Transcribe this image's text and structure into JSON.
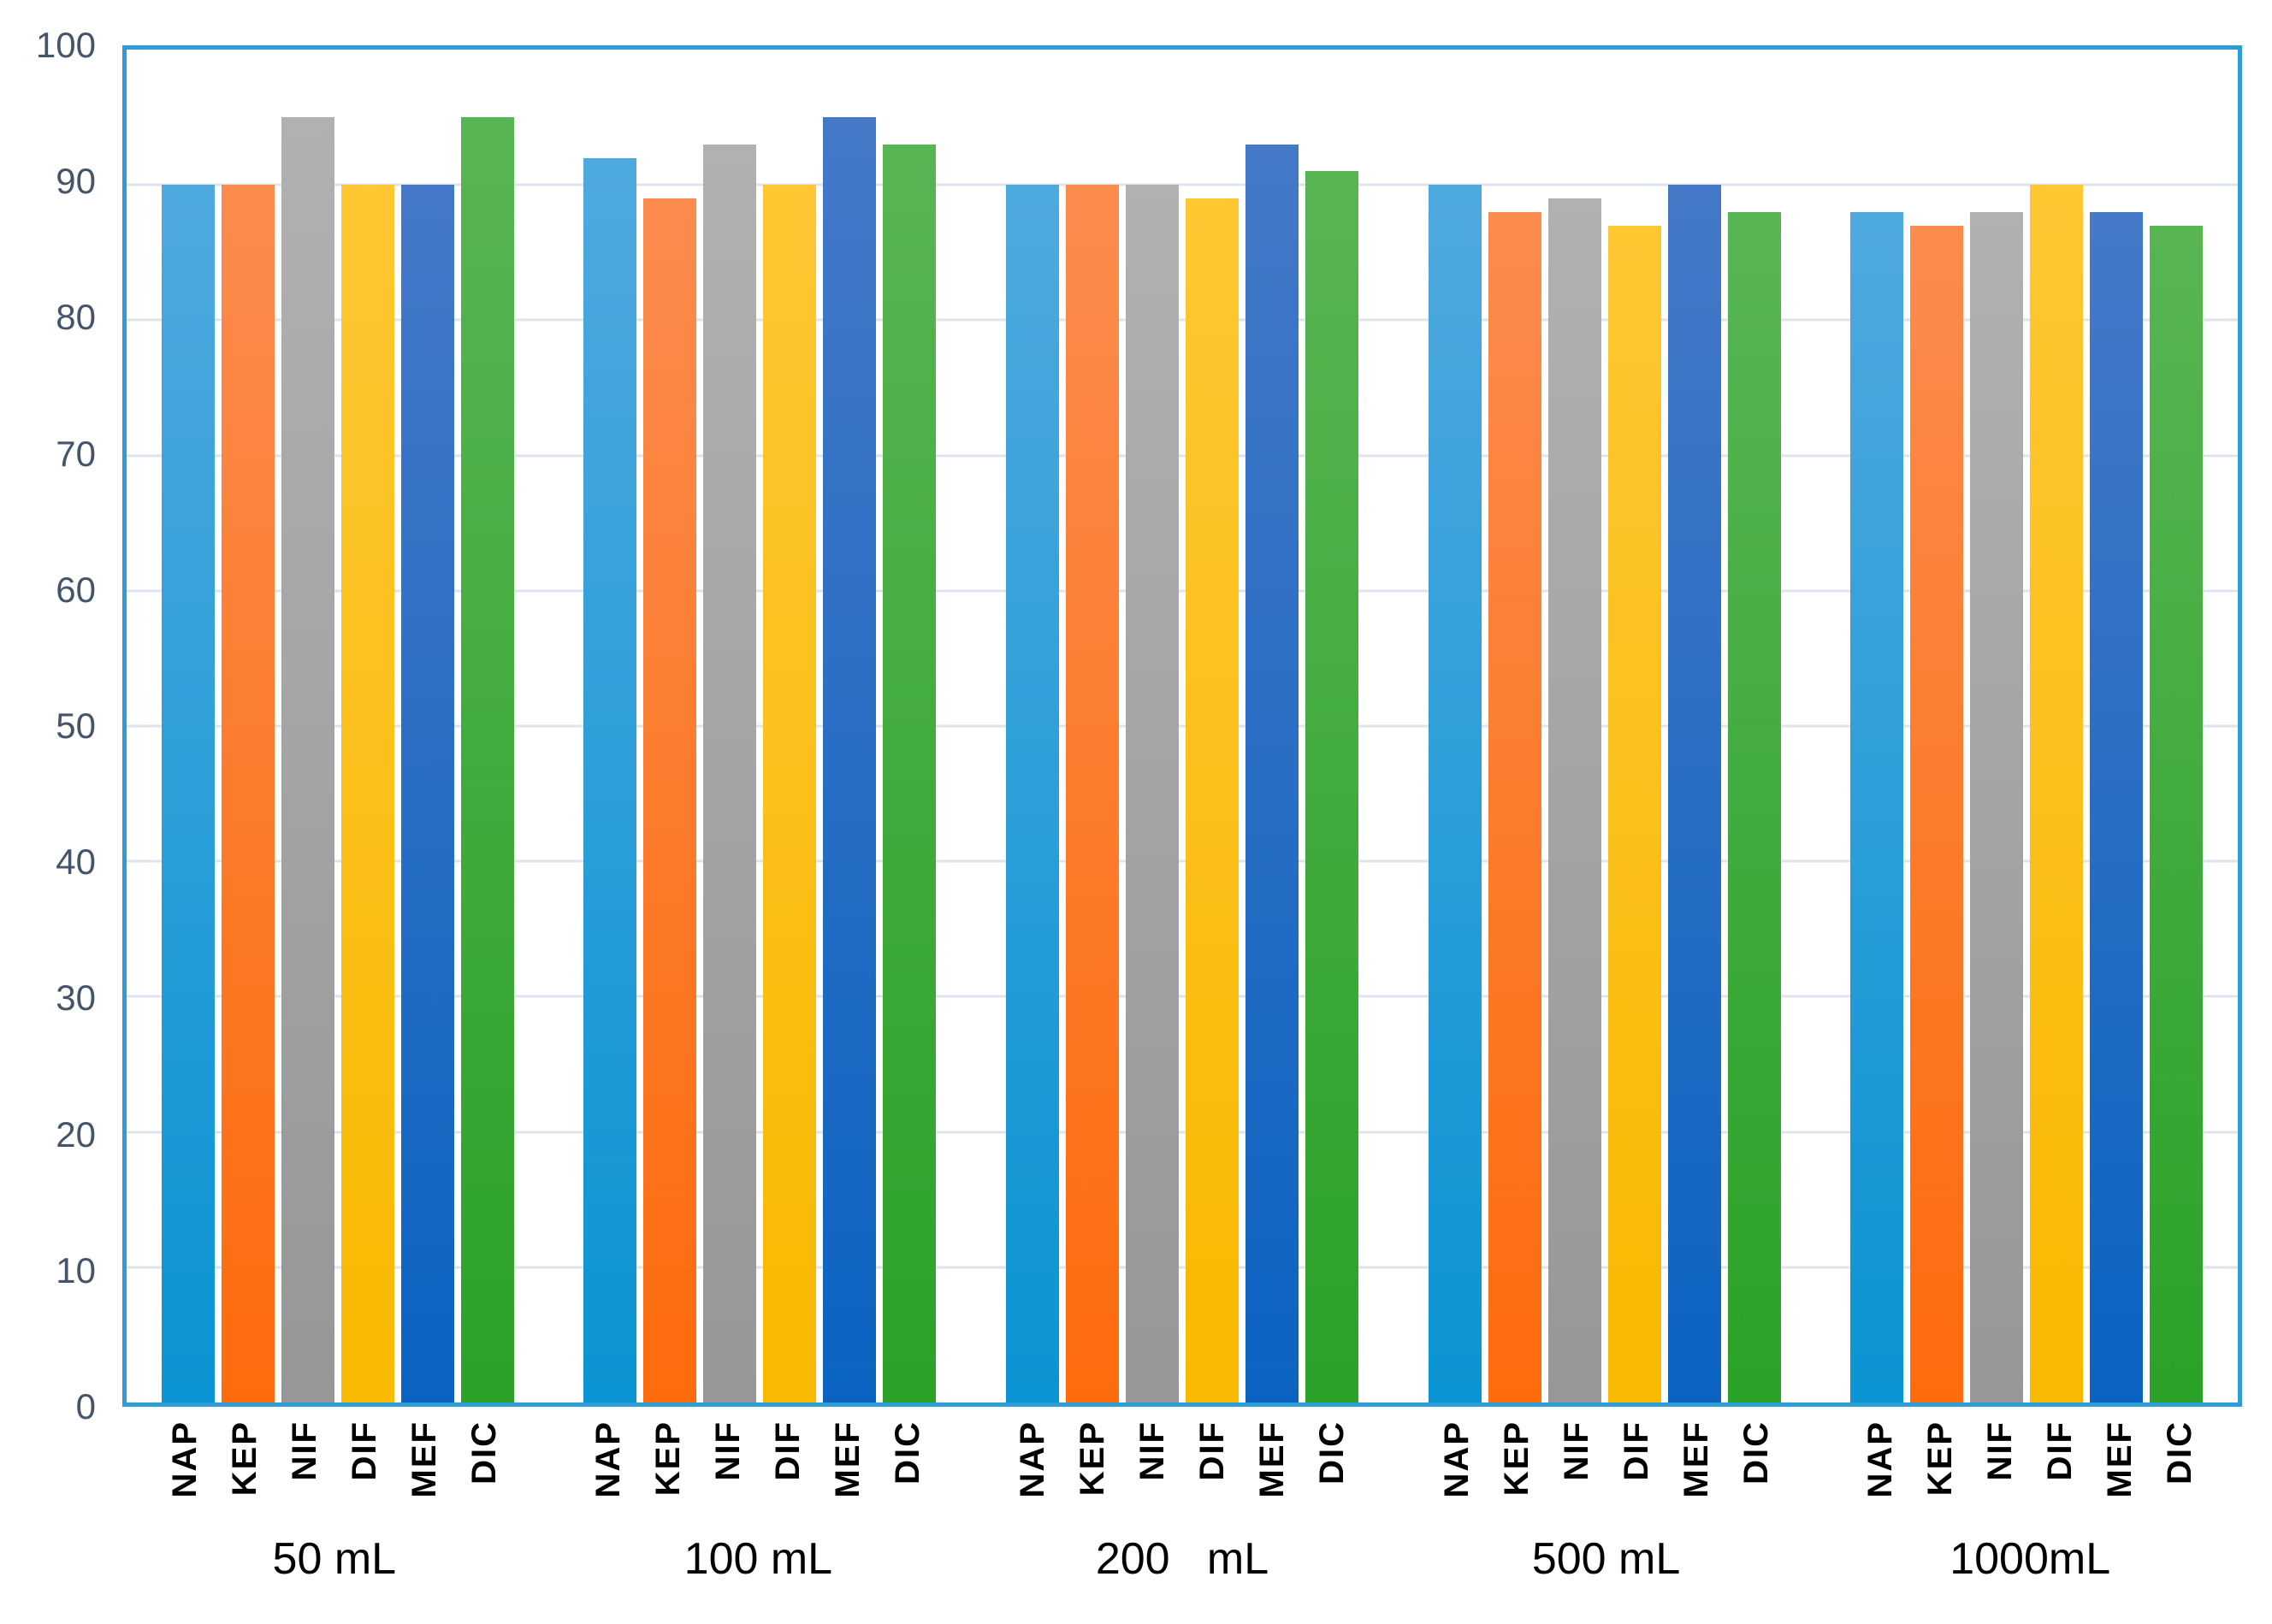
{
  "chart_data": {
    "type": "bar",
    "title": "",
    "xlabel": "",
    "ylabel": "",
    "ylim": [
      0,
      100
    ],
    "yticks": [
      0,
      10,
      20,
      30,
      40,
      50,
      60,
      70,
      80,
      90,
      100
    ],
    "grid": true,
    "legend_position": "none",
    "categories": [
      "50 mL",
      "100 mL",
      "200   mL",
      "500 mL",
      "1000mL"
    ],
    "bar_labels_per_group": [
      "NAP",
      "KEP",
      "NIF",
      "DIF",
      "MEF",
      "DIC"
    ],
    "series": [
      {
        "name": "NAP",
        "color_top": "#4FA9DE",
        "color_bottom": "#0A94D3",
        "values": [
          90,
          92,
          90,
          90,
          88
        ]
      },
      {
        "name": "KEP",
        "color_top": "#FB8C4E",
        "color_bottom": "#FD6B0C",
        "values": [
          90,
          89,
          90,
          88,
          87
        ]
      },
      {
        "name": "NIF",
        "color_top": "#B1B1B1",
        "color_bottom": "#979797",
        "values": [
          95,
          93,
          90,
          89,
          88
        ]
      },
      {
        "name": "DIF",
        "color_top": "#FEC733",
        "color_bottom": "#F8B900",
        "values": [
          90,
          90,
          89,
          87,
          90
        ]
      },
      {
        "name": "MEF",
        "color_top": "#4579C8",
        "color_bottom": "#0B63C1",
        "values": [
          90,
          95,
          93,
          90,
          88
        ]
      },
      {
        "name": "DIC",
        "color_top": "#58B553",
        "color_bottom": "#2BA228",
        "values": [
          95,
          93,
          91,
          88,
          87
        ]
      }
    ],
    "colors": {
      "plot_border": "#2C9DD8",
      "gridline": "#DDE4EE",
      "y_tick_label": "#44546A",
      "x_tick_label": "#000000",
      "category_label": "#000000",
      "background": "#FFFFFF"
    }
  }
}
